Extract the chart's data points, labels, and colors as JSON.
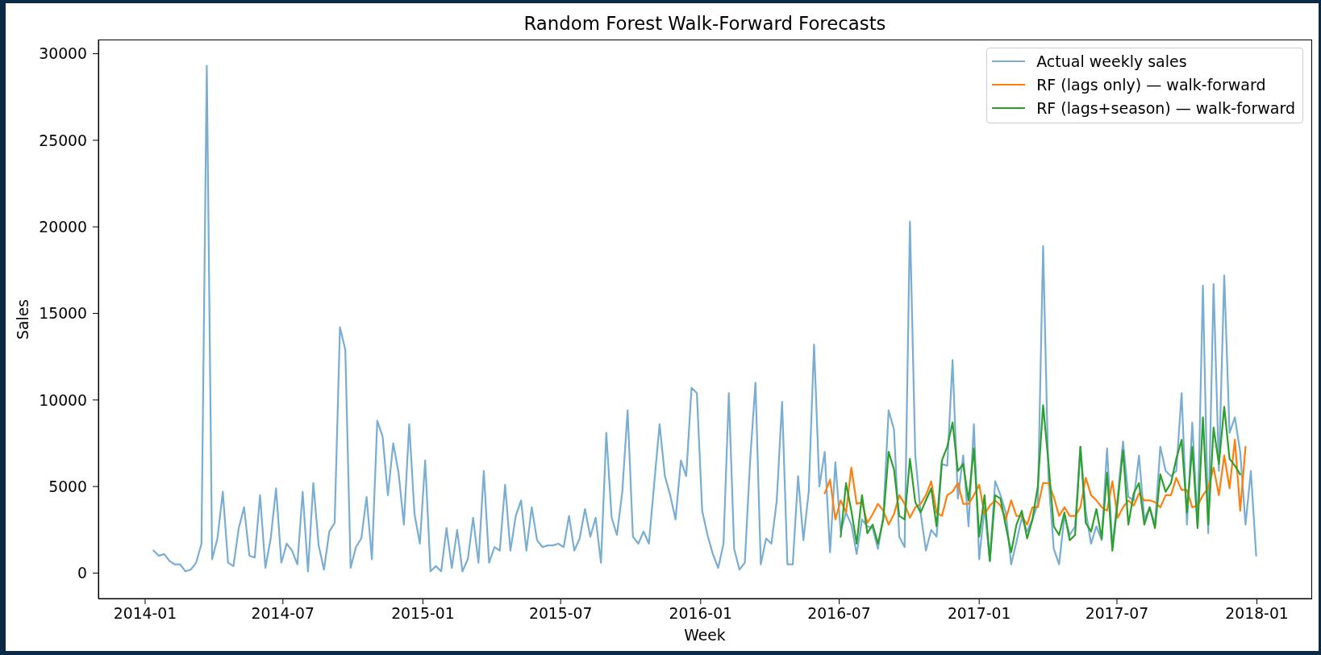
{
  "chart_data": {
    "type": "line",
    "title": "Random Forest Walk-Forward Forecasts",
    "xlabel": "Week",
    "ylabel": "Sales",
    "x": [
      "2014-01-12",
      "2014-01-19",
      "2014-01-26",
      "2014-02-02",
      "2014-02-09",
      "2014-02-16",
      "2014-02-23",
      "2014-03-02",
      "2014-03-09",
      "2014-03-16",
      "2014-03-23",
      "2014-03-30",
      "2014-04-06",
      "2014-04-13",
      "2014-04-20",
      "2014-04-27",
      "2014-05-04",
      "2014-05-11",
      "2014-05-18",
      "2014-05-25",
      "2014-06-01",
      "2014-06-08",
      "2014-06-15",
      "2014-06-22",
      "2014-06-29",
      "2014-07-06",
      "2014-07-13",
      "2014-07-20",
      "2014-07-27",
      "2014-08-03",
      "2014-08-10",
      "2014-08-17",
      "2014-08-24",
      "2014-08-31",
      "2014-09-07",
      "2014-09-14",
      "2014-09-21",
      "2014-09-28",
      "2014-10-05",
      "2014-10-12",
      "2014-10-19",
      "2014-10-26",
      "2014-11-02",
      "2014-11-09",
      "2014-11-16",
      "2014-11-23",
      "2014-11-30",
      "2014-12-07",
      "2014-12-14",
      "2014-12-21",
      "2014-12-28",
      "2015-01-04",
      "2015-01-11",
      "2015-01-18",
      "2015-01-25",
      "2015-02-01",
      "2015-02-08",
      "2015-02-15",
      "2015-02-22",
      "2015-03-01",
      "2015-03-08",
      "2015-03-15",
      "2015-03-22",
      "2015-03-29",
      "2015-04-05",
      "2015-04-12",
      "2015-04-19",
      "2015-04-26",
      "2015-05-03",
      "2015-05-10",
      "2015-05-17",
      "2015-05-24",
      "2015-05-31",
      "2015-06-07",
      "2015-06-14",
      "2015-06-21",
      "2015-06-28",
      "2015-07-05",
      "2015-07-12",
      "2015-07-19",
      "2015-07-26",
      "2015-08-02",
      "2015-08-09",
      "2015-08-16",
      "2015-08-23",
      "2015-08-30",
      "2015-09-06",
      "2015-09-13",
      "2015-09-20",
      "2015-09-27",
      "2015-10-04",
      "2015-10-11",
      "2015-10-18",
      "2015-10-25",
      "2015-11-01",
      "2015-11-08",
      "2015-11-15",
      "2015-11-22",
      "2015-11-29",
      "2015-12-06",
      "2015-12-13",
      "2015-12-20",
      "2015-12-27",
      "2016-01-03",
      "2016-01-10",
      "2016-01-17",
      "2016-01-24",
      "2016-01-31",
      "2016-02-07",
      "2016-02-14",
      "2016-02-21",
      "2016-02-28",
      "2016-03-06",
      "2016-03-13",
      "2016-03-20",
      "2016-03-27",
      "2016-04-03",
      "2016-04-10",
      "2016-04-17",
      "2016-04-24",
      "2016-05-01",
      "2016-05-08",
      "2016-05-15",
      "2016-05-22",
      "2016-05-29",
      "2016-06-05",
      "2016-06-12",
      "2016-06-19",
      "2016-06-26",
      "2016-07-03",
      "2016-07-10",
      "2016-07-17",
      "2016-07-24",
      "2016-07-31",
      "2016-08-07",
      "2016-08-14",
      "2016-08-21",
      "2016-08-28",
      "2016-09-04",
      "2016-09-11",
      "2016-09-18",
      "2016-09-25",
      "2016-10-02",
      "2016-10-09",
      "2016-10-16",
      "2016-10-23",
      "2016-10-30",
      "2016-11-06",
      "2016-11-13",
      "2016-11-20",
      "2016-11-27",
      "2016-12-04",
      "2016-12-11",
      "2016-12-18",
      "2016-12-25",
      "2017-01-01",
      "2017-01-08",
      "2017-01-15",
      "2017-01-22",
      "2017-01-29",
      "2017-02-05",
      "2017-02-12",
      "2017-02-19",
      "2017-02-26",
      "2017-03-05",
      "2017-03-12",
      "2017-03-19",
      "2017-03-26",
      "2017-04-02",
      "2017-04-09",
      "2017-04-16",
      "2017-04-23",
      "2017-04-30",
      "2017-05-07",
      "2017-05-14",
      "2017-05-21",
      "2017-05-28",
      "2017-06-04",
      "2017-06-11",
      "2017-06-18",
      "2017-06-25",
      "2017-07-02",
      "2017-07-09",
      "2017-07-16",
      "2017-07-23",
      "2017-07-30",
      "2017-08-06",
      "2017-08-13",
      "2017-08-20",
      "2017-08-27",
      "2017-09-03",
      "2017-09-10",
      "2017-09-17",
      "2017-09-24",
      "2017-10-01",
      "2017-10-08",
      "2017-10-15",
      "2017-10-22",
      "2017-10-29",
      "2017-11-05",
      "2017-11-12",
      "2017-11-19",
      "2017-11-26",
      "2017-12-03",
      "2017-12-10",
      "2017-12-17",
      "2017-12-24",
      "2017-12-31"
    ],
    "series": [
      {
        "name": "Actual weekly sales",
        "color": "#79add2",
        "values": [
          1300,
          1000,
          1100,
          700,
          500,
          500,
          100,
          200,
          600,
          1700,
          29300,
          800,
          2000,
          4700,
          600,
          400,
          2600,
          3800,
          1000,
          900,
          4500,
          300,
          2000,
          4900,
          600,
          1700,
          1300,
          500,
          4700,
          100,
          5200,
          1600,
          200,
          2400,
          2900,
          14200,
          12900,
          300,
          1500,
          2000,
          4400,
          800,
          8800,
          7900,
          4500,
          7500,
          5800,
          2800,
          8600,
          3400,
          1700,
          6500,
          100,
          400,
          100,
          2600,
          300,
          2500,
          100,
          800,
          3200,
          600,
          5900,
          600,
          1500,
          1300,
          5100,
          1300,
          3300,
          4200,
          1300,
          3800,
          1900,
          1500,
          1600,
          1600,
          1700,
          1500,
          3300,
          1300,
          2000,
          3700,
          2100,
          3200,
          600,
          8100,
          3200,
          2200,
          4700,
          9400,
          2100,
          1700,
          2400,
          1700,
          5200,
          8600,
          5600,
          4500,
          3100,
          6500,
          5600,
          10700,
          10400,
          3600,
          2200,
          1100,
          300,
          1700,
          10400,
          1400,
          200,
          600,
          6500,
          11000,
          500,
          2000,
          1700,
          4200,
          9900,
          500,
          500,
          5600,
          1900,
          4700,
          13200,
          5000,
          7000,
          1200,
          6400,
          2400,
          3500,
          2800,
          1100,
          3100,
          2700,
          2600,
          1400,
          3300,
          9400,
          8300,
          2100,
          1500,
          20300,
          6800,
          3500,
          1300,
          2500,
          2100,
          6300,
          6200,
          12300,
          4300,
          6800,
          2700,
          8600,
          800,
          3800,
          700,
          5300,
          4500,
          3500,
          500,
          1800,
          3200,
          2400,
          3100,
          4000,
          18900,
          5500,
          1400,
          500,
          3300,
          2200,
          2700,
          7300,
          3600,
          1700,
          2700,
          1900,
          7200,
          1500,
          4400,
          7600,
          4400,
          4200,
          6800,
          3100,
          3800,
          2800,
          7300,
          5900,
          5600,
          5900,
          10400,
          2800,
          8700,
          2700,
          16600,
          2300,
          16700,
          5900,
          17200,
          8100,
          9000,
          7000,
          2800,
          5900,
          1000
        ]
      },
      {
        "name": "RF (lags only) — walk-forward",
        "color": "#ff7f0e",
        "x": [
          "2016-06-12",
          "2016-06-19",
          "2016-06-26",
          "2016-07-03",
          "2016-07-10",
          "2016-07-17",
          "2016-07-24",
          "2016-07-31",
          "2016-08-07",
          "2016-08-14",
          "2016-08-21",
          "2016-08-28",
          "2016-09-04",
          "2016-09-11",
          "2016-09-18",
          "2016-09-25",
          "2016-10-02",
          "2016-10-09",
          "2016-10-16",
          "2016-10-23",
          "2016-10-30",
          "2016-11-06",
          "2016-11-13",
          "2016-11-20",
          "2016-11-27",
          "2016-12-04",
          "2016-12-11",
          "2016-12-18",
          "2016-12-25",
          "2017-01-01",
          "2017-01-08",
          "2017-01-15",
          "2017-01-22",
          "2017-01-29",
          "2017-02-05",
          "2017-02-12",
          "2017-02-19",
          "2017-02-26",
          "2017-03-05",
          "2017-03-12",
          "2017-03-19",
          "2017-03-26",
          "2017-04-02",
          "2017-04-09",
          "2017-04-16",
          "2017-04-23",
          "2017-04-30",
          "2017-05-07",
          "2017-05-14",
          "2017-05-21",
          "2017-05-28",
          "2017-06-04",
          "2017-06-11",
          "2017-06-18",
          "2017-06-25",
          "2017-07-02",
          "2017-07-09",
          "2017-07-16",
          "2017-07-23",
          "2017-07-30",
          "2017-08-06",
          "2017-08-13",
          "2017-08-20",
          "2017-08-27",
          "2017-09-03",
          "2017-09-10",
          "2017-09-17",
          "2017-09-24",
          "2017-10-01",
          "2017-10-08",
          "2017-10-15",
          "2017-10-22",
          "2017-10-29",
          "2017-11-05",
          "2017-11-12",
          "2017-11-19",
          "2017-11-26",
          "2017-12-03",
          "2017-12-10",
          "2017-12-17"
        ],
        "values": [
          4600,
          5400,
          3100,
          4200,
          3500,
          6100,
          4000,
          4100,
          2900,
          3400,
          4000,
          3600,
          2800,
          3400,
          4500,
          4000,
          3200,
          3800,
          4000,
          4500,
          5300,
          3500,
          3300,
          4500,
          4700,
          5200,
          4000,
          4000,
          4500,
          5100,
          3400,
          3900,
          4200,
          3900,
          3100,
          4200,
          3300,
          3300,
          2800,
          3800,
          3800,
          5200,
          5200,
          4400,
          3300,
          3800,
          3300,
          3300,
          3800,
          5500,
          4500,
          4200,
          3800,
          3600,
          5300,
          3200,
          3800,
          4200,
          3900,
          4600,
          4200,
          4200,
          4100,
          3800,
          4500,
          4500,
          5500,
          4800,
          4800,
          3800,
          3900,
          4500,
          4900,
          6100,
          4500,
          6800,
          4900,
          7700,
          3600,
          7300
        ]
      },
      {
        "name": "RF (lags+season) — walk-forward",
        "color": "#2ca02c",
        "x": [
          "2016-07-03",
          "2016-07-10",
          "2016-07-17",
          "2016-07-24",
          "2016-07-31",
          "2016-08-07",
          "2016-08-14",
          "2016-08-21",
          "2016-08-28",
          "2016-09-04",
          "2016-09-11",
          "2016-09-18",
          "2016-09-25",
          "2016-10-02",
          "2016-10-09",
          "2016-10-16",
          "2016-10-23",
          "2016-10-30",
          "2016-11-06",
          "2016-11-13",
          "2016-11-20",
          "2016-11-27",
          "2016-12-04",
          "2016-12-11",
          "2016-12-18",
          "2016-12-25",
          "2017-01-01",
          "2017-01-08",
          "2017-01-15",
          "2017-01-22",
          "2017-01-29",
          "2017-02-05",
          "2017-02-12",
          "2017-02-19",
          "2017-02-26",
          "2017-03-05",
          "2017-03-12",
          "2017-03-19",
          "2017-03-26",
          "2017-04-02",
          "2017-04-09",
          "2017-04-16",
          "2017-04-23",
          "2017-04-30",
          "2017-05-07",
          "2017-05-14",
          "2017-05-21",
          "2017-05-28",
          "2017-06-04",
          "2017-06-11",
          "2017-06-18",
          "2017-06-25",
          "2017-07-02",
          "2017-07-09",
          "2017-07-16",
          "2017-07-23",
          "2017-07-30",
          "2017-08-06",
          "2017-08-13",
          "2017-08-20",
          "2017-08-27",
          "2017-09-03",
          "2017-09-10",
          "2017-09-17",
          "2017-09-24",
          "2017-10-01",
          "2017-10-08",
          "2017-10-15",
          "2017-10-22",
          "2017-10-29",
          "2017-11-05",
          "2017-11-12",
          "2017-11-19",
          "2017-11-26",
          "2017-12-03",
          "2017-12-10"
        ],
        "values": [
          2100,
          5200,
          3600,
          1700,
          4500,
          2300,
          2800,
          1700,
          3100,
          7000,
          6000,
          3300,
          3100,
          6600,
          4100,
          3500,
          4200,
          4900,
          2700,
          6500,
          7300,
          8700,
          5900,
          6300,
          4200,
          7200,
          2100,
          4500,
          700,
          4500,
          4300,
          2700,
          1200,
          2800,
          3600,
          2000,
          3100,
          5000,
          9700,
          6400,
          2700,
          2200,
          3500,
          1900,
          2200,
          7300,
          2900,
          2400,
          3700,
          2000,
          5800,
          1300,
          4100,
          7100,
          2800,
          4600,
          5200,
          2800,
          3800,
          2600,
          5700,
          4700,
          5200,
          6600,
          7700,
          3500,
          7300,
          2600,
          9000,
          2800,
          8400,
          6300,
          9600,
          6600,
          6200,
          5700
        ]
      }
    ],
    "xlim": [
      "2013-10-31T13:12",
      "2018-03-13T10:48"
    ],
    "xticks": [
      "2014-01",
      "2014-07",
      "2015-01",
      "2015-07",
      "2016-01",
      "2016-07",
      "2017-01",
      "2017-07",
      "2018-01"
    ],
    "ylim": [
      -1470,
      30820
    ],
    "yticks": [
      0,
      5000,
      10000,
      15000,
      20000,
      25000,
      30000
    ],
    "legend": "top right"
  }
}
